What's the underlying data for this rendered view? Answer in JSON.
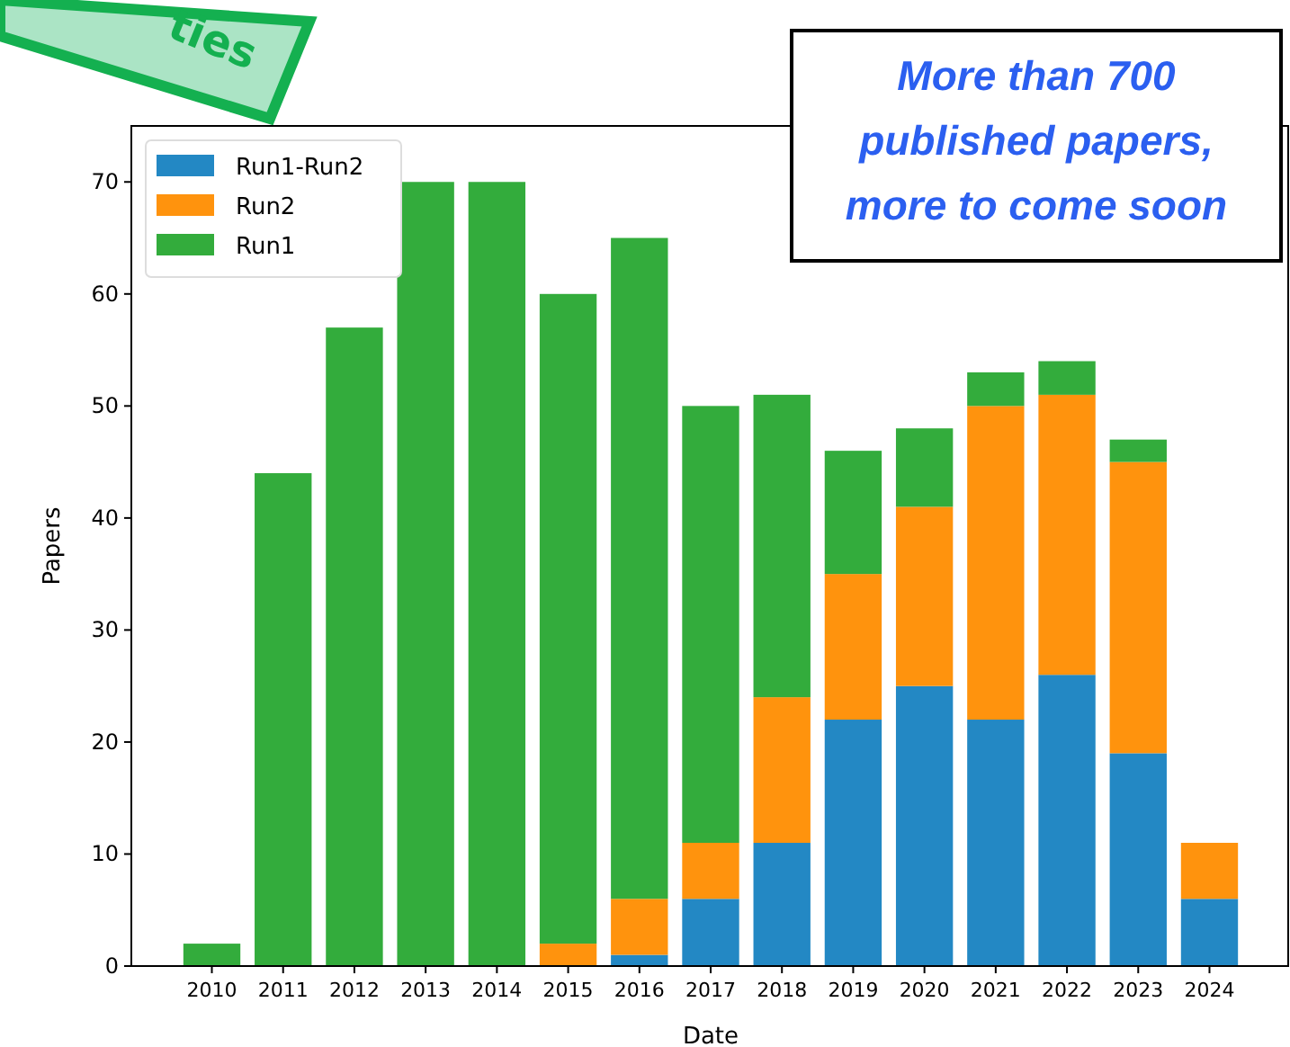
{
  "chart_data": {
    "type": "bar",
    "stacked": true,
    "xlabel": "Date",
    "ylabel": "Papers",
    "categories": [
      "2010",
      "2011",
      "2012",
      "2013",
      "2014",
      "2015",
      "2016",
      "2017",
      "2018",
      "2019",
      "2020",
      "2021",
      "2022",
      "2023",
      "2024"
    ],
    "series": [
      {
        "name": "Run1-Run2",
        "color": "#2388c4",
        "values": [
          0,
          0,
          0,
          0,
          0,
          0,
          1,
          6,
          11,
          22,
          25,
          22,
          26,
          19,
          6
        ]
      },
      {
        "name": "Run2",
        "color": "#ff930d",
        "values": [
          0,
          0,
          0,
          0,
          0,
          2,
          5,
          5,
          13,
          13,
          16,
          28,
          25,
          26,
          5
        ]
      },
      {
        "name": "Run1",
        "color": "#33ac3c",
        "values": [
          2,
          44,
          57,
          70,
          70,
          58,
          59,
          39,
          27,
          11,
          7,
          3,
          3,
          2,
          0
        ]
      }
    ],
    "ylim": [
      0,
      75
    ],
    "yticks": [
      0,
      10,
      20,
      30,
      40,
      50,
      60,
      70
    ],
    "legend": "top left",
    "annotations": [
      "More than 700\npublished papers,\nmore to come soon",
      "ties"
    ]
  }
}
